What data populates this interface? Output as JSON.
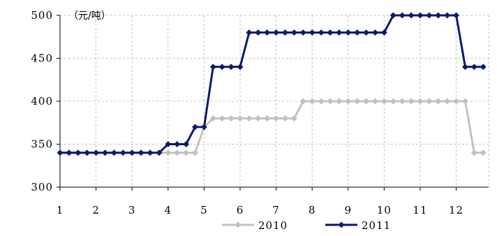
{
  "chart_data": {
    "type": "line",
    "title": "",
    "unit_label": "（元/吨）",
    "xlabel": "",
    "ylabel": "",
    "x_ticks": [
      "1",
      "2",
      "3",
      "4",
      "5",
      "6",
      "7",
      "8",
      "9",
      "10",
      "11",
      "12"
    ],
    "x_range": [
      1,
      12.9
    ],
    "y_ticks": [
      300,
      350,
      400,
      450,
      500
    ],
    "ylim": [
      300,
      500
    ],
    "grid": true,
    "legend_position": "bottom",
    "series": [
      {
        "name": "2010",
        "color": "#c0c0c0",
        "marker": "diamond",
        "x": [
          1,
          1.25,
          1.5,
          1.75,
          2,
          2.25,
          2.5,
          2.75,
          3,
          3.25,
          3.5,
          3.75,
          4,
          4.25,
          4.5,
          4.75,
          5,
          5.25,
          5.5,
          5.75,
          6,
          6.25,
          6.5,
          6.75,
          7,
          7.25,
          7.5,
          7.75,
          8,
          8.25,
          8.5,
          8.75,
          9,
          9.25,
          9.5,
          9.75,
          10,
          10.25,
          10.5,
          10.75,
          11,
          11.25,
          11.5,
          11.75,
          12,
          12.25,
          12.5,
          12.75
        ],
        "values": [
          340,
          340,
          340,
          340,
          340,
          340,
          340,
          340,
          340,
          340,
          340,
          340,
          340,
          340,
          340,
          340,
          370,
          380,
          380,
          380,
          380,
          380,
          380,
          380,
          380,
          380,
          380,
          400,
          400,
          400,
          400,
          400,
          400,
          400,
          400,
          400,
          400,
          400,
          400,
          400,
          400,
          400,
          400,
          400,
          400,
          400,
          340,
          340
        ]
      },
      {
        "name": "2011",
        "color": "#0d1a6b",
        "marker": "diamond",
        "x": [
          1,
          1.25,
          1.5,
          1.75,
          2,
          2.25,
          2.5,
          2.75,
          3,
          3.25,
          3.5,
          3.75,
          4,
          4.25,
          4.5,
          4.75,
          5,
          5.25,
          5.5,
          5.75,
          6,
          6.25,
          6.5,
          6.75,
          7,
          7.25,
          7.5,
          7.75,
          8,
          8.25,
          8.5,
          8.75,
          9,
          9.25,
          9.5,
          9.75,
          10,
          10.25,
          10.5,
          10.75,
          11,
          11.25,
          11.5,
          11.75,
          12,
          12.25,
          12.5,
          12.75
        ],
        "values": [
          340,
          340,
          340,
          340,
          340,
          340,
          340,
          340,
          340,
          340,
          340,
          340,
          350,
          350,
          350,
          370,
          370,
          440,
          440,
          440,
          440,
          480,
          480,
          480,
          480,
          480,
          480,
          480,
          480,
          480,
          480,
          480,
          480,
          480,
          480,
          480,
          480,
          500,
          500,
          500,
          500,
          500,
          500,
          500,
          500,
          440,
          440,
          440
        ]
      }
    ]
  }
}
